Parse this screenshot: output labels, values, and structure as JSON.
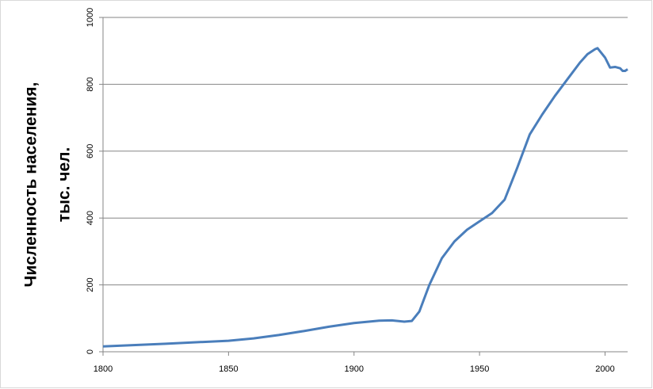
{
  "chart_data": {
    "type": "line",
    "ylabel": [
      "Численность населения,",
      "тыс. чел."
    ],
    "x": [
      1800,
      1825,
      1850,
      1860,
      1870,
      1880,
      1890,
      1900,
      1910,
      1915,
      1920,
      1923,
      1926,
      1930,
      1935,
      1940,
      1945,
      1950,
      1955,
      1960,
      1965,
      1970,
      1975,
      1980,
      1985,
      1990,
      1993,
      1996,
      1997,
      2000,
      2002,
      2004,
      2006,
      2007,
      2008,
      2009
    ],
    "series": [
      {
        "color": "#4a7ebb",
        "values": [
          16,
          24,
          33,
          40,
          50,
          62,
          75,
          86,
          93,
          94,
          90,
          92,
          120,
          200,
          280,
          330,
          365,
          390,
          415,
          455,
          550,
          650,
          710,
          765,
          815,
          865,
          890,
          905,
          908,
          880,
          850,
          852,
          848,
          840,
          840,
          845
        ]
      }
    ],
    "xlim": [
      1800,
      2009
    ],
    "xticks": [
      1800,
      1850,
      1900,
      1950,
      2000
    ],
    "ylim": [
      0,
      1000
    ],
    "yticks": [
      0,
      200,
      400,
      600,
      800,
      1000
    ],
    "grid": true
  }
}
